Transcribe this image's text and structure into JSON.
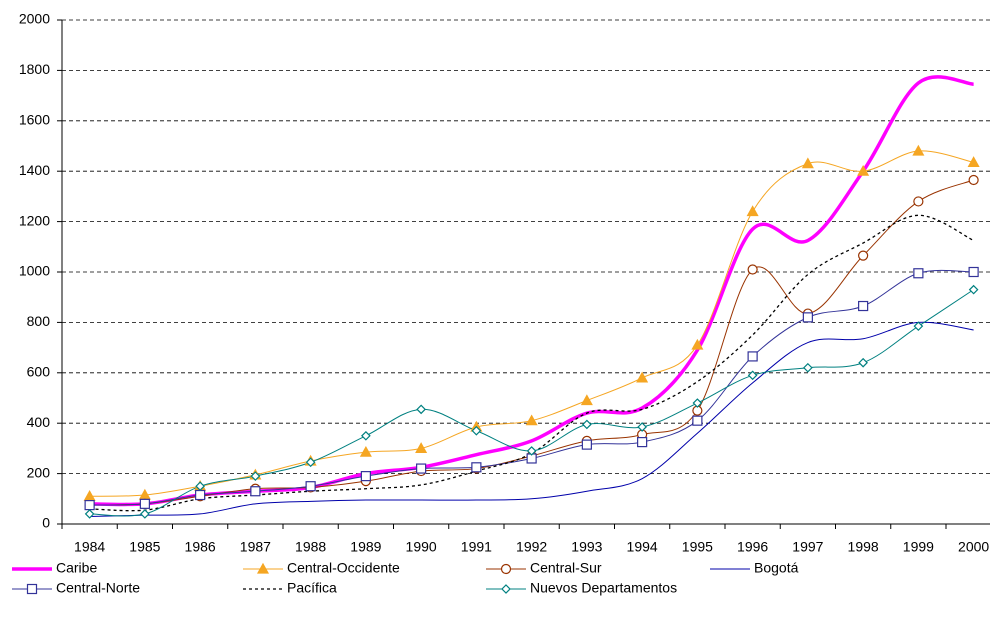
{
  "chart_data": {
    "type": "line",
    "categories": [
      "1984",
      "1985",
      "1986",
      "1987",
      "1988",
      "1989",
      "1990",
      "1991",
      "1992",
      "1993",
      "1994",
      "1995",
      "1996",
      "1997",
      "1998",
      "1999",
      "2000"
    ],
    "ylim": [
      0,
      2000
    ],
    "yticks": [
      0,
      200,
      400,
      600,
      800,
      1000,
      1200,
      1400,
      1600,
      1800,
      2000
    ],
    "grid": true,
    "smooth": true,
    "legend": "bottom",
    "series": [
      {
        "name": "Caribe",
        "color": "#ff00ff",
        "line_width": 3.5,
        "marker": null,
        "values": [
          80,
          80,
          115,
          130,
          145,
          200,
          225,
          275,
          330,
          440,
          460,
          690,
          1170,
          1125,
          1400,
          1750,
          1745
        ]
      },
      {
        "name": "Central-Occidente",
        "color": "#f5a623",
        "line_width": 1,
        "marker": "triangle",
        "values": [
          110,
          115,
          150,
          195,
          250,
          285,
          300,
          385,
          410,
          490,
          580,
          710,
          1240,
          1430,
          1400,
          1480,
          1435
        ]
      },
      {
        "name": "Central-Sur",
        "color": "#993300",
        "line_width": 1,
        "marker": "circle",
        "values": [
          75,
          80,
          110,
          140,
          145,
          170,
          210,
          220,
          270,
          330,
          355,
          450,
          1010,
          835,
          1065,
          1280,
          1365
        ]
      },
      {
        "name": "Bogotá",
        "color": "#0000aa",
        "line_width": 1,
        "marker": null,
        "values": [
          30,
          35,
          40,
          80,
          90,
          95,
          95,
          95,
          100,
          130,
          180,
          360,
          560,
          720,
          735,
          800,
          770
        ]
      },
      {
        "name": "Central-Norte",
        "color": "#333399",
        "line_width": 1,
        "marker": "square",
        "values": [
          75,
          80,
          115,
          130,
          150,
          190,
          220,
          225,
          260,
          315,
          325,
          410,
          665,
          820,
          865,
          995,
          1000
        ]
      },
      {
        "name": "Pacífica",
        "color": "#000000",
        "line_width": 1.3,
        "marker": null,
        "line_style": "dotted",
        "values": [
          60,
          55,
          100,
          115,
          130,
          140,
          155,
          210,
          280,
          440,
          455,
          565,
          750,
          990,
          1115,
          1225,
          1125
        ]
      },
      {
        "name": "Nuevos Departamentos",
        "color": "#008080",
        "line_width": 1,
        "marker": "diamond",
        "values": [
          40,
          40,
          150,
          190,
          245,
          350,
          455,
          370,
          290,
          395,
          385,
          480,
          590,
          620,
          640,
          785,
          930
        ]
      }
    ]
  }
}
